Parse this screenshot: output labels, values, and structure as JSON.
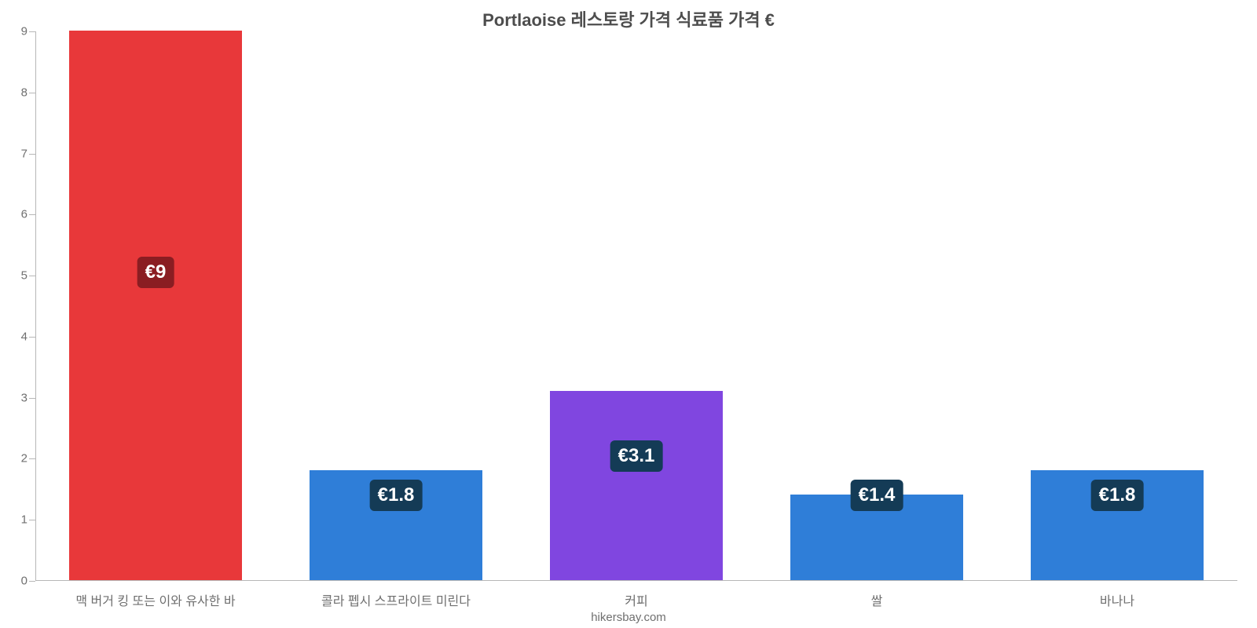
{
  "chart": {
    "type": "bar",
    "title": "Portlaoise 레스토랑 가격 식료품 가격 €",
    "title_fontsize": 22,
    "title_color": "#4d4d4d",
    "background_color": "#ffffff",
    "axis_color": "#b7b7b7",
    "label_color": "#6f6f6f",
    "label_fontsize": 16,
    "ylim": [
      0,
      9
    ],
    "ytick_step": 1,
    "bar_width_ratio": 0.72,
    "categories": [
      "맥 버거 킹 또는 이와 유사한 바",
      "콜라 펩시 스프라이트 미린다",
      "커피",
      "쌀",
      "바나나"
    ],
    "values": [
      9,
      1.8,
      3.1,
      1.4,
      1.8
    ],
    "value_labels": [
      "€9",
      "€1.8",
      "€3.1",
      "€1.4",
      "€1.8"
    ],
    "bar_colors": [
      "#e8383a",
      "#2f7ed8",
      "#8046e0",
      "#2f7ed8",
      "#2f7ed8"
    ],
    "badge_background": "#143b56",
    "badge_background_first": "#8a1d22",
    "badge_fontsize": 24,
    "attribution": "hikersbay.com"
  }
}
